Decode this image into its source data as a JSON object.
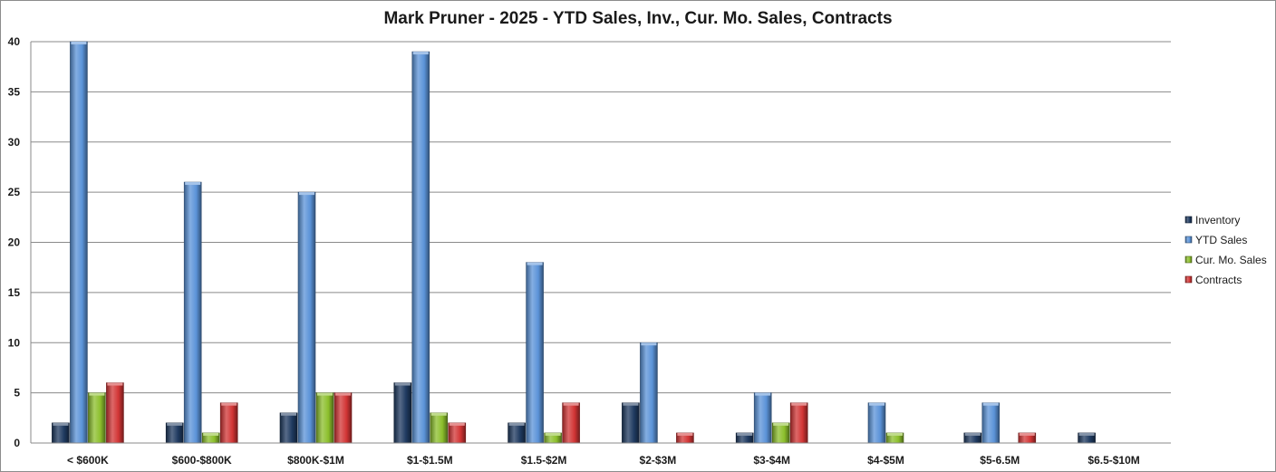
{
  "chart_data": {
    "type": "bar",
    "title": "Mark Pruner - 2025 - YTD Sales, Inv., Cur. Mo. Sales, Contracts",
    "xlabel": "",
    "ylabel": "",
    "ylim": [
      0,
      40
    ],
    "yticks": [
      0,
      5,
      10,
      15,
      20,
      25,
      30,
      35,
      40
    ],
    "grid": true,
    "legend_position": "right",
    "categories": [
      "< $600K",
      "$600-$800K",
      "$800K-$1M",
      "$1-$1.5M",
      "$1.5-$2M",
      "$2-$3M",
      "$3-$4M",
      "$4-$5M",
      "$5-6.5M",
      "$6.5-$10M"
    ],
    "series": [
      {
        "name": "Inventory",
        "color": "#1f3a60",
        "values": [
          2,
          2,
          3,
          6,
          2,
          4,
          1,
          0,
          1,
          1
        ]
      },
      {
        "name": "YTD Sales",
        "color": "#5b93d8",
        "values": [
          40,
          26,
          25,
          39,
          18,
          10,
          5,
          4,
          4,
          0
        ]
      },
      {
        "name": "Cur. Mo. Sales",
        "color": "#8cbf2c",
        "values": [
          5,
          1,
          5,
          3,
          1,
          0,
          2,
          1,
          0,
          0
        ]
      },
      {
        "name": "Contracts",
        "color": "#d23535",
        "values": [
          6,
          4,
          5,
          2,
          4,
          1,
          4,
          0,
          1,
          0
        ]
      }
    ]
  }
}
